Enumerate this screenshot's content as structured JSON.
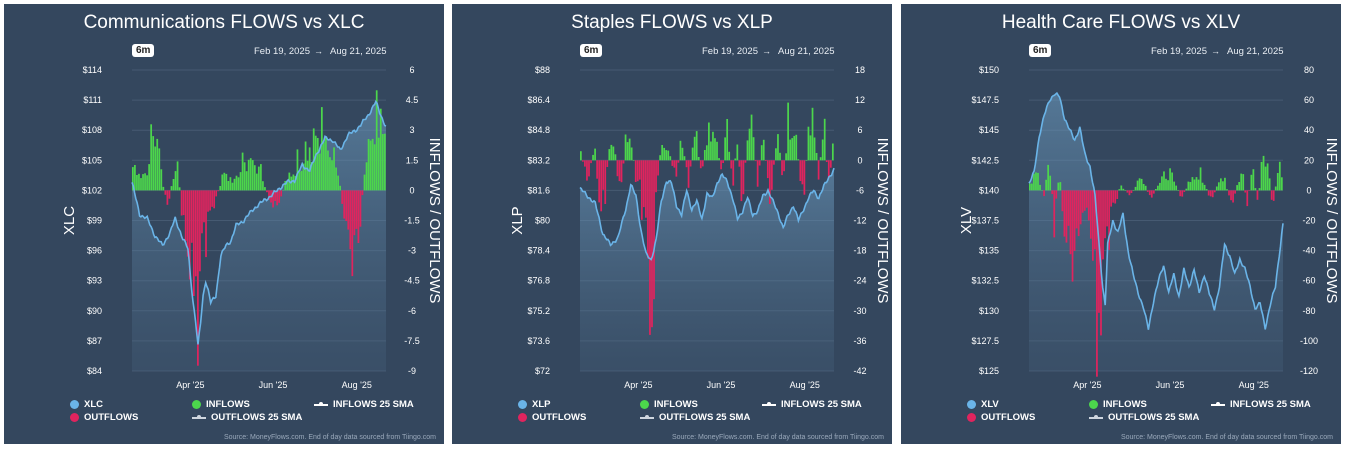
{
  "panels": [
    {
      "title": "Communications FLOWS vs XLC",
      "range_button": "6m",
      "date_from": "Feb 19, 2025",
      "date_to": "Aug 21, 2025",
      "source": "Source: MoneyFlows.com. End of day data sourced from Tiingo.com",
      "legend": {
        "price": "XLC",
        "inflows": "INFLOWS",
        "inflows_sma": "INFLOWS 25 SMA",
        "outflows": "OUTFLOWS",
        "outflows_sma": "OUTFLOWS 25 SMA"
      }
    },
    {
      "title": "Staples FLOWS vs XLP",
      "range_button": "6m",
      "date_from": "Feb 19, 2025",
      "date_to": "Aug 21, 2025",
      "source": "Source: MoneyFlows.com. End of day data sourced from Tiingo.com",
      "legend": {
        "price": "XLP",
        "inflows": "INFLOWS",
        "inflows_sma": "INFLOWS 25 SMA",
        "outflows": "OUTFLOWS",
        "outflows_sma": "OUTFLOWS 25 SMA"
      }
    },
    {
      "title": "Health Care FLOWS vs XLV",
      "range_button": "6m",
      "date_from": "Feb 19, 2025",
      "date_to": "Aug 21, 2025",
      "source": "Source: MoneyFlows.com. End of day data sourced from Tiingo.com",
      "legend": {
        "price": "XLV",
        "inflows": "INFLOWS",
        "inflows_sma": "INFLOWS 25 SMA",
        "outflows": "OUTFLOWS",
        "outflows_sma": "OUTFLOWS 25 SMA"
      }
    }
  ],
  "colors": {
    "panel_bg": "#34475e",
    "price_line": "#6ab4e8",
    "inflows": "#4cd64c",
    "outflows": "#e0245e",
    "text": "#ffffff"
  },
  "chart_data": [
    {
      "type": "line+bar",
      "title": "Communications FLOWS vs XLC",
      "ylabel": "XLC",
      "ylabel_right": "INFLOWS / OUTFLOWS",
      "left_ticks": [
        "$114",
        "$111",
        "$108",
        "$105",
        "$102",
        "$99",
        "$96",
        "$93",
        "$90",
        "$87",
        "$84"
      ],
      "right_ticks": [
        "6",
        "4.5",
        "3",
        "1.5",
        "0",
        "-1.5",
        "-3",
        "-4.5",
        "-6",
        "-7.5",
        "-9"
      ],
      "x_ticks": [
        "Apr '25",
        "Jun '25",
        "Aug '25"
      ],
      "price_range": [
        84,
        114
      ],
      "flow_range": [
        -9,
        6
      ],
      "price_keypoints": [
        [
          0,
          102.8
        ],
        [
          3,
          99.6
        ],
        [
          6,
          99.2
        ],
        [
          9,
          97.5
        ],
        [
          12,
          96.5
        ],
        [
          15,
          97.8
        ],
        [
          17,
          99.2
        ],
        [
          20,
          97.2
        ],
        [
          22,
          96.2
        ],
        [
          23,
          93.5
        ],
        [
          24,
          91.0
        ],
        [
          25,
          89.0
        ],
        [
          26,
          86.5
        ],
        [
          27,
          88.8
        ],
        [
          28,
          91.5
        ],
        [
          29,
          93.0
        ],
        [
          30,
          92.0
        ],
        [
          31,
          90.8
        ],
        [
          33,
          91.5
        ],
        [
          35,
          95.5
        ],
        [
          37,
          96.5
        ],
        [
          39,
          97.0
        ],
        [
          41,
          98.5
        ],
        [
          44,
          99.0
        ],
        [
          48,
          100.2
        ],
        [
          52,
          101.0
        ],
        [
          55,
          101.5
        ],
        [
          58,
          102.2
        ],
        [
          61,
          102.8
        ],
        [
          64,
          103.0
        ],
        [
          67,
          104.5
        ],
        [
          70,
          104.0
        ],
        [
          73,
          105.8
        ],
        [
          76,
          107.2
        ],
        [
          79,
          107.0
        ],
        [
          82,
          106.0
        ],
        [
          85,
          107.5
        ],
        [
          88,
          108.0
        ],
        [
          90,
          108.5
        ],
        [
          93,
          109.5
        ],
        [
          96,
          110.8
        ],
        [
          98,
          109.5
        ],
        [
          100,
          108.3
        ]
      ],
      "flow_keypoints": [
        [
          0,
          1.2
        ],
        [
          5,
          0.6
        ],
        [
          8,
          2.5
        ],
        [
          10,
          3.1
        ],
        [
          12,
          0.4
        ],
        [
          14,
          -0.8
        ],
        [
          16,
          0.5
        ],
        [
          18,
          1.3
        ],
        [
          20,
          -1.5
        ],
        [
          22,
          -3.2
        ],
        [
          24,
          -4.5
        ],
        [
          26,
          -6.8
        ],
        [
          28,
          -2.6
        ],
        [
          30,
          -1.6
        ],
        [
          33,
          -0.5
        ],
        [
          36,
          0.9
        ],
        [
          40,
          0.4
        ],
        [
          45,
          1.6
        ],
        [
          50,
          1.2
        ],
        [
          55,
          -0.8
        ],
        [
          58,
          -0.6
        ],
        [
          61,
          0.6
        ],
        [
          64,
          1.0
        ],
        [
          68,
          1.8
        ],
        [
          72,
          2.6
        ],
        [
          75,
          3.0
        ],
        [
          78,
          1.8
        ],
        [
          81,
          1.2
        ],
        [
          84,
          -1.8
        ],
        [
          86,
          -2.8
        ],
        [
          88,
          -3.2
        ],
        [
          90,
          -1.5
        ],
        [
          92,
          1.5
        ],
        [
          95,
          3.0
        ],
        [
          98,
          3.8
        ],
        [
          100,
          2.5
        ]
      ]
    },
    {
      "type": "line+bar",
      "title": "Staples FLOWS vs XLP",
      "ylabel": "XLP",
      "ylabel_right": "INFLOWS / OUTFLOWS",
      "left_ticks": [
        "$88",
        "$86.4",
        "$84.8",
        "$83.2",
        "$81.6",
        "$80",
        "$78.4",
        "$76.8",
        "$75.2",
        "$73.6",
        "$72"
      ],
      "right_ticks": [
        "18",
        "12",
        "6",
        "0",
        "-6",
        "-12",
        "-18",
        "-24",
        "-30",
        "-36",
        "-42"
      ],
      "x_ticks": [
        "Apr '25",
        "Jun '25",
        "Aug '25"
      ],
      "price_range": [
        72,
        88
      ],
      "flow_range": [
        -42,
        18
      ],
      "price_keypoints": [
        [
          0,
          81.7
        ],
        [
          3,
          81.3
        ],
        [
          6,
          80.9
        ],
        [
          9,
          79.3
        ],
        [
          12,
          78.7
        ],
        [
          15,
          79.1
        ],
        [
          18,
          80.6
        ],
        [
          20,
          81.9
        ],
        [
          22,
          81.3
        ],
        [
          24,
          79.5
        ],
        [
          26,
          78.2
        ],
        [
          28,
          77.9
        ],
        [
          30,
          79.0
        ],
        [
          32,
          81.0
        ],
        [
          34,
          82.1
        ],
        [
          36,
          82.0
        ],
        [
          38,
          80.8
        ],
        [
          40,
          80.3
        ],
        [
          42,
          81.6
        ],
        [
          44,
          80.6
        ],
        [
          46,
          81.0
        ],
        [
          48,
          80.1
        ],
        [
          50,
          81.4
        ],
        [
          52,
          81.2
        ],
        [
          54,
          82.0
        ],
        [
          56,
          82.4
        ],
        [
          58,
          82.1
        ],
        [
          60,
          81.2
        ],
        [
          62,
          80.1
        ],
        [
          64,
          80.5
        ],
        [
          66,
          81.2
        ],
        [
          68,
          80.3
        ],
        [
          70,
          80.5
        ],
        [
          72,
          81.3
        ],
        [
          74,
          81.6
        ],
        [
          76,
          81.0
        ],
        [
          78,
          80.4
        ],
        [
          80,
          79.6
        ],
        [
          82,
          80.3
        ],
        [
          84,
          80.8
        ],
        [
          86,
          80.0
        ],
        [
          88,
          80.6
        ],
        [
          90,
          81.2
        ],
        [
          92,
          81.6
        ],
        [
          94,
          81.2
        ],
        [
          96,
          81.8
        ],
        [
          98,
          82.3
        ],
        [
          100,
          82.7
        ]
      ],
      "flow_keypoints": [
        [
          0,
          2
        ],
        [
          3,
          -4
        ],
        [
          6,
          3
        ],
        [
          8,
          -12
        ],
        [
          10,
          -6
        ],
        [
          12,
          4
        ],
        [
          14,
          2
        ],
        [
          16,
          -8
        ],
        [
          18,
          4
        ],
        [
          20,
          6
        ],
        [
          22,
          -4
        ],
        [
          24,
          -7
        ],
        [
          26,
          -12
        ],
        [
          28,
          -40
        ],
        [
          30,
          -8
        ],
        [
          32,
          3
        ],
        [
          35,
          2
        ],
        [
          38,
          -4
        ],
        [
          40,
          5
        ],
        [
          43,
          -5
        ],
        [
          45,
          7
        ],
        [
          48,
          -3
        ],
        [
          50,
          5
        ],
        [
          53,
          6
        ],
        [
          56,
          -3
        ],
        [
          58,
          8
        ],
        [
          60,
          -5
        ],
        [
          62,
          4
        ],
        [
          64,
          -10
        ],
        [
          66,
          6
        ],
        [
          68,
          7
        ],
        [
          70,
          -5
        ],
        [
          72,
          5
        ],
        [
          75,
          -8
        ],
        [
          78,
          6
        ],
        [
          80,
          -6
        ],
        [
          82,
          7
        ],
        [
          85,
          5
        ],
        [
          88,
          -9
        ],
        [
          90,
          6
        ],
        [
          92,
          9
        ],
        [
          94,
          -4
        ],
        [
          96,
          8
        ],
        [
          98,
          -6
        ],
        [
          100,
          5
        ]
      ]
    },
    {
      "type": "line+bar",
      "title": "Health Care FLOWS vs XLV",
      "ylabel": "XLV",
      "ylabel_right": "INFLOWS / OUTFLOWS",
      "left_ticks": [
        "$150",
        "$147.5",
        "$145",
        "$142.5",
        "$140",
        "$137.5",
        "$135",
        "$132.5",
        "$130",
        "$127.5",
        "$125"
      ],
      "right_ticks": [
        "80",
        "60",
        "40",
        "20",
        "0",
        "-20",
        "-40",
        "-60",
        "-80",
        "-100",
        "-120"
      ],
      "x_ticks": [
        "Apr '25",
        "Jun '25",
        "Aug '25"
      ],
      "price_range": [
        125,
        150
      ],
      "flow_range": [
        -120,
        80
      ],
      "price_keypoints": [
        [
          0,
          140.5
        ],
        [
          2,
          141.5
        ],
        [
          4,
          144.5
        ],
        [
          6,
          146.2
        ],
        [
          8,
          147.5
        ],
        [
          10,
          148.0
        ],
        [
          12,
          147.8
        ],
        [
          14,
          146.0
        ],
        [
          16,
          145.0
        ],
        [
          18,
          144.2
        ],
        [
          20,
          145.2
        ],
        [
          22,
          143.0
        ],
        [
          24,
          142.0
        ],
        [
          26,
          139.5
        ],
        [
          27,
          137.0
        ],
        [
          28,
          134.5
        ],
        [
          29,
          132.0
        ],
        [
          30,
          130.5
        ],
        [
          31,
          135.5
        ],
        [
          33,
          137.5
        ],
        [
          35,
          136.5
        ],
        [
          37,
          138.0
        ],
        [
          39,
          135.0
        ],
        [
          41,
          133.0
        ],
        [
          43,
          131.5
        ],
        [
          45,
          130.3
        ],
        [
          47,
          128.5
        ],
        [
          49,
          130.8
        ],
        [
          51,
          132.5
        ],
        [
          53,
          133.8
        ],
        [
          55,
          131.5
        ],
        [
          57,
          133.0
        ],
        [
          59,
          131.2
        ],
        [
          61,
          133.4
        ],
        [
          63,
          132.0
        ],
        [
          65,
          133.4
        ],
        [
          67,
          131.5
        ],
        [
          69,
          133.0
        ],
        [
          71,
          131.4
        ],
        [
          73,
          130.2
        ],
        [
          75,
          132.0
        ],
        [
          77,
          135.5
        ],
        [
          79,
          134.6
        ],
        [
          81,
          133.0
        ],
        [
          83,
          134.3
        ],
        [
          85,
          133.5
        ],
        [
          87,
          132.0
        ],
        [
          89,
          130.2
        ],
        [
          91,
          130.6
        ],
        [
          93,
          128.6
        ],
        [
          95,
          130.5
        ],
        [
          97,
          132.0
        ],
        [
          99,
          135.5
        ],
        [
          100,
          137.2
        ]
      ],
      "flow_keypoints": [
        [
          0,
          2
        ],
        [
          3,
          14
        ],
        [
          6,
          -5
        ],
        [
          8,
          22
        ],
        [
          10,
          -20
        ],
        [
          12,
          15
        ],
        [
          14,
          -30
        ],
        [
          16,
          -40
        ],
        [
          18,
          -45
        ],
        [
          20,
          -22
        ],
        [
          22,
          -12
        ],
        [
          24,
          -20
        ],
        [
          26,
          -60
        ],
        [
          27,
          -110
        ],
        [
          28,
          -90
        ],
        [
          30,
          -40
        ],
        [
          32,
          -20
        ],
        [
          34,
          -10
        ],
        [
          36,
          4
        ],
        [
          40,
          -4
        ],
        [
          44,
          10
        ],
        [
          48,
          -6
        ],
        [
          52,
          8
        ],
        [
          56,
          12
        ],
        [
          60,
          -5
        ],
        [
          64,
          8
        ],
        [
          68,
          10
        ],
        [
          72,
          -8
        ],
        [
          76,
          12
        ],
        [
          80,
          -10
        ],
        [
          84,
          15
        ],
        [
          86,
          -12
        ],
        [
          88,
          18
        ],
        [
          90,
          -10
        ],
        [
          92,
          20
        ],
        [
          94,
          22
        ],
        [
          96,
          -12
        ],
        [
          98,
          14
        ],
        [
          100,
          10
        ]
      ]
    }
  ]
}
